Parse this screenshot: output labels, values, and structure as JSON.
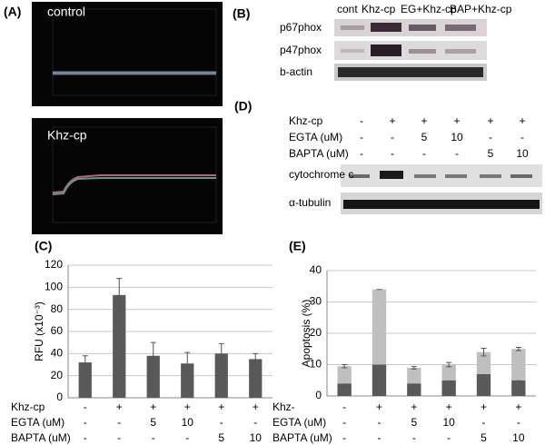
{
  "panel_labels": [
    "(A)",
    "(B)",
    "(C)",
    "(D)",
    "(E)"
  ],
  "panel_a": {
    "images": [
      "control",
      "Khz-cp"
    ]
  },
  "panel_b": {
    "lanes": [
      "cont",
      "Khz-cp",
      "EG+Khz-cp",
      "BAP+Khz-cp"
    ],
    "rows": [
      "p67phox",
      "p47phox",
      "b-actin"
    ]
  },
  "panel_d": {
    "conditions": [
      {
        "label": "Khz-cp",
        "values": [
          "-",
          "+",
          "+",
          "+",
          "+",
          "+"
        ]
      },
      {
        "label": "EGTA (uM)",
        "values": [
          "-",
          "-",
          "5",
          "10",
          "-",
          "-"
        ]
      },
      {
        "label": "BAPTA (uM)",
        "values": [
          "-",
          "-",
          "-",
          "-",
          "5",
          "10"
        ]
      }
    ],
    "blots": [
      "cytochrome c",
      "α-tubulin"
    ]
  },
  "chart_data": [
    {
      "type": "bar",
      "ylabel": "RFU (x10⁻³)",
      "categories": [
        null,
        null,
        null,
        null,
        null,
        null
      ],
      "values": [
        32,
        93,
        38,
        31,
        40,
        35
      ],
      "errors": [
        6,
        15,
        12,
        10,
        9,
        5
      ],
      "color": "#595959",
      "ylim": [
        0,
        120
      ],
      "yticks": [
        0,
        20,
        40,
        60,
        80,
        100,
        120
      ],
      "grid": true,
      "treatments": [
        {
          "label": "Khz-cp",
          "values": [
            "-",
            "+",
            "+",
            "+",
            "+",
            "+"
          ]
        },
        {
          "label": "EGTA (uM)",
          "values": [
            "-",
            "-",
            "5",
            "10",
            "-",
            "-"
          ]
        },
        {
          "label": "BAPTA (uM)",
          "values": [
            "-",
            "-",
            "-",
            "-",
            "5",
            "10"
          ]
        }
      ]
    },
    {
      "type": "stacked_bar",
      "ylabel": "Apoptosis (%)",
      "categories": [
        null,
        null,
        null,
        null,
        null,
        null
      ],
      "series": [
        {
          "color": "#595959",
          "values": [
            4,
            10,
            4,
            5,
            7,
            5
          ],
          "errors": [
            0.7,
            0,
            0.5,
            0.5,
            2,
            0
          ]
        },
        {
          "color": "#bfbfbf",
          "values": [
            5.5,
            24,
            5,
            5,
            7,
            10
          ],
          "errors": [
            0.5,
            0,
            0.4,
            0.7,
            1.2,
            0.5
          ]
        }
      ],
      "ylim": [
        0,
        40
      ],
      "yticks": [
        0,
        10,
        20,
        30,
        40
      ],
      "grid": true,
      "treatments": [
        {
          "label": "Khz-",
          "values": [
            "-",
            "+",
            "+",
            "+",
            "+",
            "+"
          ]
        },
        {
          "label": "EGTA (uM)",
          "values": [
            "-",
            "-",
            "5",
            "10",
            "-",
            "-"
          ]
        },
        {
          "label": "BAPTA (uM)",
          "values": [
            "-",
            "-",
            "-",
            "-",
            "5",
            "10"
          ]
        }
      ]
    }
  ]
}
